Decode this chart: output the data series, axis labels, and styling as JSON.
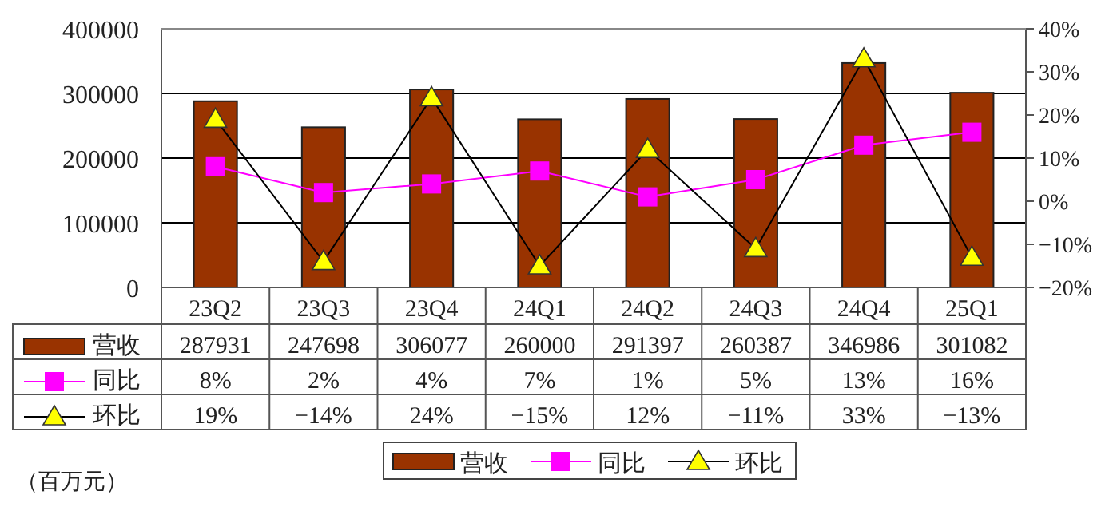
{
  "chart_data": {
    "type": "bar",
    "categories": [
      "23Q2",
      "23Q3",
      "23Q4",
      "24Q1",
      "24Q2",
      "24Q3",
      "24Q4",
      "25Q1"
    ],
    "series": [
      {
        "name": "营收",
        "color": "#993300",
        "values": [
          287931,
          247698,
          306077,
          260000,
          291397,
          260387,
          346986,
          301082
        ],
        "value_labels": [
          "287931",
          "247698",
          "306077",
          "260000",
          "291397",
          "260387",
          "346986",
          "301082"
        ]
      },
      {
        "name": "同比",
        "type": "line",
        "axis": "y2",
        "marker": "square",
        "color": "#ff00ff",
        "values": [
          8,
          2,
          4,
          7,
          1,
          5,
          13,
          16
        ],
        "value_labels": [
          "8%",
          "2%",
          "4%",
          "7%",
          "1%",
          "5%",
          "13%",
          "16%"
        ]
      },
      {
        "name": "环比",
        "type": "line",
        "axis": "y2",
        "marker": "triangle",
        "color": "#ffff00",
        "values": [
          19,
          -14,
          24,
          -15,
          12,
          -11,
          33,
          -13
        ],
        "value_labels": [
          "19%",
          "−14%",
          "24%",
          "−15%",
          "12%",
          "−11%",
          "33%",
          "−13%"
        ]
      }
    ],
    "ylim": [
      0,
      400000
    ],
    "yticks": [
      0,
      100000,
      200000,
      300000,
      400000
    ],
    "y2lim": [
      -20,
      40
    ],
    "y2ticks": [
      {
        "value": -20,
        "label": "−20%"
      },
      {
        "value": -10,
        "label": "−10%"
      },
      {
        "value": 0,
        "label": "0%"
      },
      {
        "value": 10,
        "label": "10%"
      },
      {
        "value": 20,
        "label": "20%"
      },
      {
        "value": 30,
        "label": "30%"
      },
      {
        "value": 40,
        "label": "40%"
      }
    ],
    "grid": "y",
    "legend": "bottom",
    "annotations": [
      "（百万元）"
    ]
  }
}
